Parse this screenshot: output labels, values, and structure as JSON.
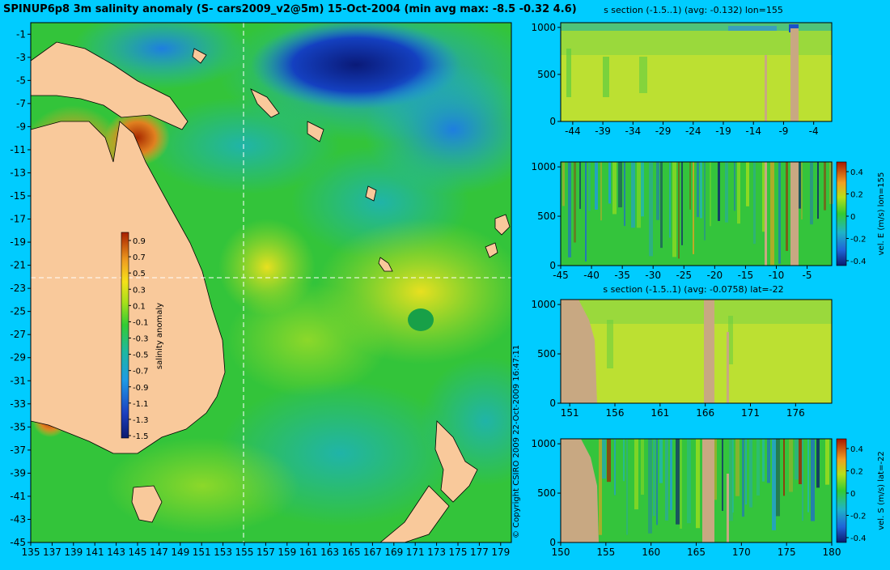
{
  "page_title": "SPINUP6p8 3m salinity anomaly (S- cars2009_v2@5m) 15-Oct-2004 (min avg max: -8.5 -0.32 4.6)",
  "copyright": "© Copyright CSIRO 2009   22-Oct-2009 16:47:11",
  "colors": {
    "background": "#00ccff",
    "land": "#f9c99b",
    "section_land": "#c8a882",
    "dash_line": "#ffffff"
  },
  "chart_data": [
    {
      "type": "heatmap",
      "name": "salinity anomaly map",
      "xlim": [
        135,
        180
      ],
      "ylim": [
        -45,
        0
      ],
      "x_ticks": [
        "135",
        "137",
        "139",
        "141",
        "143",
        "145",
        "147",
        "149",
        "151",
        "153",
        "155",
        "157",
        "159",
        "161",
        "163",
        "165",
        "167",
        "169",
        "171",
        "173",
        "175",
        "177",
        "179"
      ],
      "y_ticks": [
        "-1",
        "-3",
        "-5",
        "-7",
        "-9",
        "-11",
        "-13",
        "-15",
        "-17",
        "-19",
        "-21",
        "-23",
        "-25",
        "-27",
        "-29",
        "-31",
        "-33",
        "-35",
        "-37",
        "-39",
        "-41",
        "-43",
        "-45"
      ],
      "section_lon": 155,
      "section_lat": -22,
      "colorbar": {
        "label": "salinity anomaly",
        "ticks": [
          "0.9",
          "0.7",
          "0.5",
          "0.3",
          "0.1",
          "-0.1",
          "-0.3",
          "-0.5",
          "-0.7",
          "-0.9",
          "-1.1",
          "-1.3",
          "-1.5"
        ]
      }
    },
    {
      "type": "heatmap",
      "name": "s section lon",
      "title": "s section (-1.5..1) (avg: -0.132) lon=155",
      "xlim": [
        -46,
        -1
      ],
      "ylim": [
        1050,
        0
      ],
      "x_ticks": [
        "-44",
        "-39",
        "-34",
        "-29",
        "-24",
        "-19",
        "-14",
        "-9",
        "-4"
      ],
      "y_ticks": [
        "0",
        "500",
        "1000"
      ]
    },
    {
      "type": "heatmap",
      "name": "vel E section lon",
      "title": "",
      "xlim": [
        -45,
        -1
      ],
      "ylim": [
        1050,
        0
      ],
      "x_ticks": [
        "-45",
        "-40",
        "-35",
        "-30",
        "-25",
        "-20",
        "-15",
        "-10",
        "-5"
      ],
      "y_ticks": [
        "0",
        "500",
        "1000"
      ],
      "colorbar": {
        "label": "vel. E (m/s) lon=155",
        "ticks": [
          "0.4",
          "0.2",
          "0",
          "-0.2",
          "-0.4"
        ]
      }
    },
    {
      "type": "heatmap",
      "name": "s section lat",
      "title": "s section (-1.5..1) (avg: -0.0758) lat=-22",
      "xlim": [
        150,
        180
      ],
      "ylim": [
        1050,
        0
      ],
      "x_ticks": [
        "151",
        "156",
        "161",
        "166",
        "171",
        "176"
      ],
      "y_ticks": [
        "0",
        "500",
        "1000"
      ]
    },
    {
      "type": "heatmap",
      "name": "vel S section lat",
      "title": "",
      "xlim": [
        150,
        180
      ],
      "ylim": [
        1050,
        0
      ],
      "x_ticks": [
        "150",
        "155",
        "160",
        "165",
        "170",
        "175",
        "180"
      ],
      "y_ticks": [
        "0",
        "500",
        "1000"
      ],
      "colorbar": {
        "label": "vel. S (m/s) lat=-22",
        "ticks": [
          "0.4",
          "0.2",
          "0",
          "-0.2",
          "-0.4"
        ]
      }
    }
  ]
}
